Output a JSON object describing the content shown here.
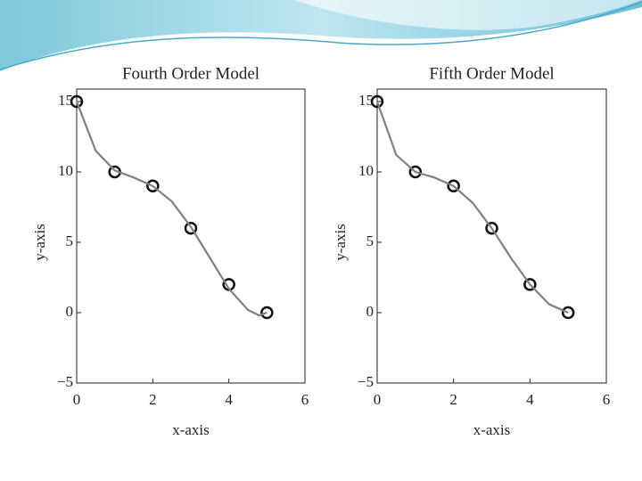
{
  "chart_data": [
    {
      "type": "line",
      "title": "Fourth Order Model",
      "xlabel": "x-axis",
      "ylabel": "y-axis",
      "x": [
        0,
        1,
        2,
        3,
        4,
        5
      ],
      "series": [
        {
          "color": "#111111",
          "marker": "circle",
          "line": false,
          "values": [
            15,
            10,
            9,
            6,
            2,
            0
          ]
        },
        {
          "color": "#808080",
          "marker": "none",
          "line": true,
          "x": [
            0,
            0.5,
            1,
            1.5,
            2,
            2.5,
            3,
            3.5,
            4,
            4.5,
            4.8,
            5
          ],
          "values": [
            15,
            11.5,
            10.1,
            9.6,
            9.0,
            7.9,
            6.1,
            3.9,
            1.7,
            0.2,
            -0.2,
            0
          ]
        }
      ],
      "xlim": [
        0,
        6
      ],
      "xticks": [
        0,
        2,
        4,
        6
      ],
      "ylim": [
        -5,
        15
      ],
      "yticks": [
        {
          "value": -5,
          "label": "−5"
        },
        0,
        5,
        10,
        15
      ]
    },
    {
      "type": "line",
      "title": "Fifth Order Model",
      "xlabel": "x-axis",
      "ylabel": "y-axis",
      "x": [
        0,
        1,
        2,
        3,
        4,
        5
      ],
      "series": [
        {
          "color": "#111111",
          "marker": "circle",
          "line": false,
          "values": [
            15,
            10,
            9,
            6,
            2,
            0
          ]
        },
        {
          "color": "#808080",
          "marker": "none",
          "line": true,
          "x": [
            0,
            0.5,
            1,
            1.5,
            2,
            2.5,
            3,
            3.5,
            4,
            4.5,
            5
          ],
          "values": [
            15,
            11.2,
            10,
            9.6,
            9,
            7.8,
            6,
            3.9,
            2,
            0.6,
            0
          ]
        }
      ],
      "xlim": [
        0,
        6
      ],
      "xticks": [
        0,
        2,
        4,
        6
      ],
      "ylim": [
        -5,
        15
      ],
      "yticks": [
        {
          "value": -5,
          "label": "−5"
        },
        0,
        5,
        10,
        15
      ]
    }
  ]
}
